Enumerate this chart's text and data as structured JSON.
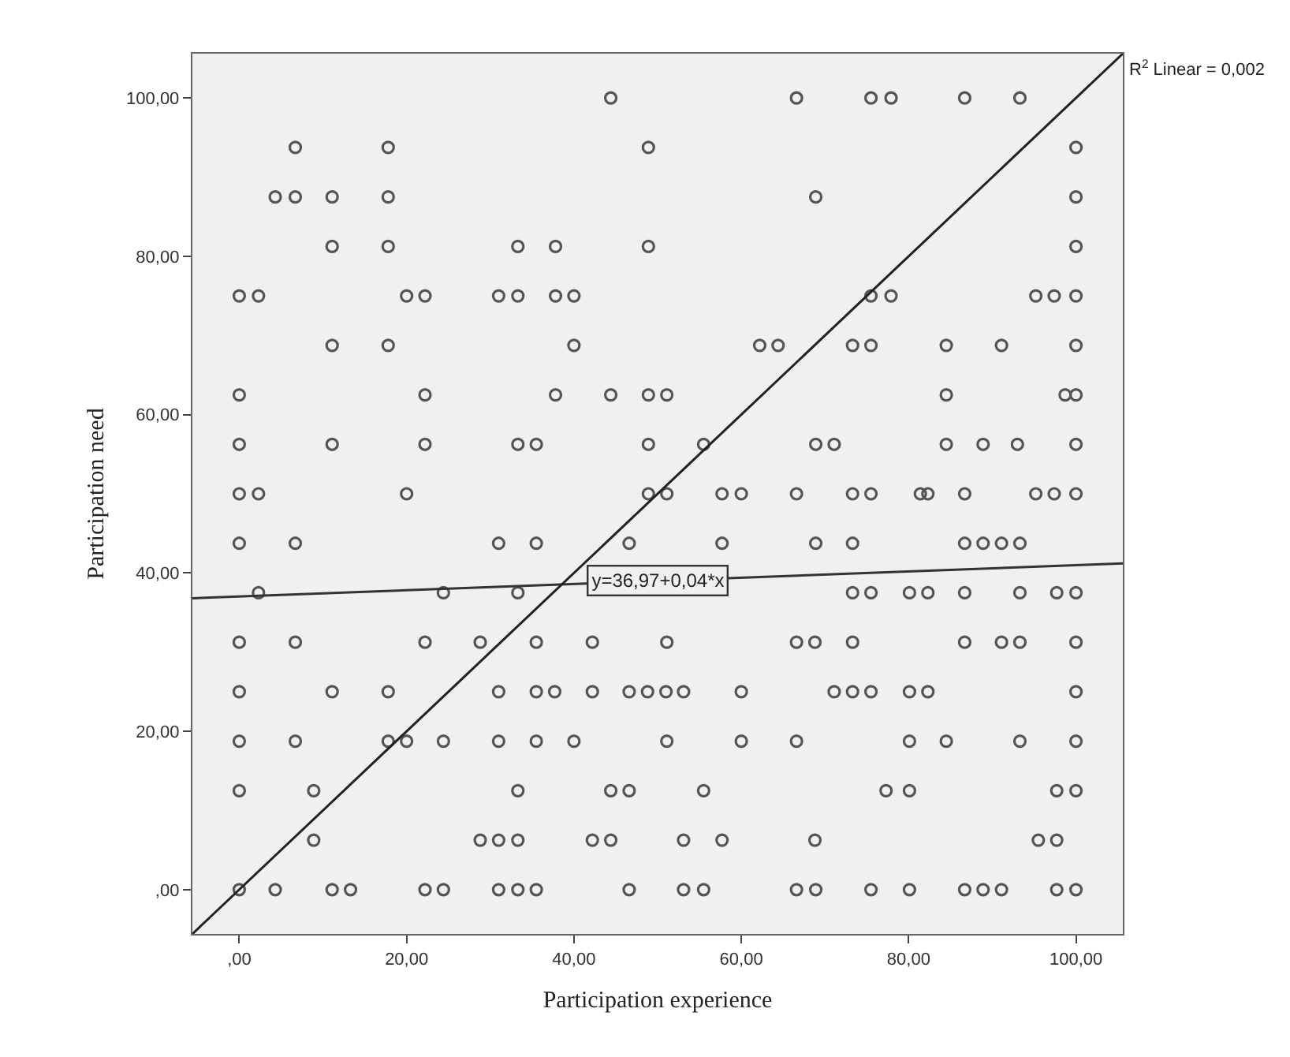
{
  "chart_data": {
    "type": "scatter",
    "xlabel": "Participation experience",
    "ylabel": "Participation need",
    "xlim": [
      -5.6,
      105.6
    ],
    "ylim": [
      -5.6,
      105.6
    ],
    "xticks": [
      {
        "value": 0,
        "label": ",00"
      },
      {
        "value": 20,
        "label": "20,00"
      },
      {
        "value": 40,
        "label": "40,00"
      },
      {
        "value": 60,
        "label": "60,00"
      },
      {
        "value": 80,
        "label": "80,00"
      },
      {
        "value": 100,
        "label": "100,00"
      }
    ],
    "yticks": [
      {
        "value": 0,
        "label": ",00"
      },
      {
        "value": 20,
        "label": "20,00"
      },
      {
        "value": 40,
        "label": "40,00"
      },
      {
        "value": 60,
        "label": "60,00"
      },
      {
        "value": 80,
        "label": "80,00"
      },
      {
        "value": 100,
        "label": "100,00"
      }
    ],
    "grid": false,
    "series": [
      {
        "marker": "circle",
        "color": "#555555",
        "x": [
          44.4,
          66.6,
          75.5,
          77.9,
          86.7,
          93.3,
          6.7,
          17.8,
          48.9,
          100,
          4.3,
          6.7,
          11.1,
          17.8,
          68.9,
          100,
          11.1,
          17.8,
          33.3,
          37.8,
          48.9,
          100,
          0,
          2.3,
          20,
          22.2,
          31,
          33.3,
          37.8,
          40,
          75.5,
          77.9,
          95.2,
          97.4,
          100,
          11.1,
          17.8,
          40,
          62.2,
          64.4,
          73.3,
          75.5,
          84.5,
          91.1,
          100,
          0,
          22.2,
          37.8,
          44.4,
          48.9,
          51.1,
          84.5,
          98.7,
          100,
          0,
          11.1,
          22.2,
          33.3,
          35.5,
          48.9,
          55.5,
          68.9,
          71.1,
          84.5,
          88.9,
          93,
          100,
          0,
          2.3,
          20,
          48.9,
          51.1,
          57.7,
          60,
          66.6,
          73.3,
          75.5,
          81.4,
          82.3,
          86.7,
          95.2,
          97.4,
          100,
          0,
          6.7,
          31,
          35.5,
          46.6,
          57.7,
          68.9,
          73.3,
          86.7,
          88.9,
          91.1,
          93.3,
          2.3,
          24.4,
          33.3,
          73.3,
          75.5,
          80.1,
          82.3,
          86.7,
          93.3,
          97.7,
          100,
          0,
          6.7,
          22.2,
          28.8,
          35.5,
          42.2,
          51.1,
          66.6,
          68.8,
          73.3,
          86.7,
          91.1,
          93.3,
          100,
          0,
          11.1,
          17.8,
          31,
          35.5,
          37.7,
          42.2,
          46.6,
          48.8,
          51,
          53.1,
          60,
          71.1,
          73.3,
          75.5,
          80.1,
          82.3,
          100,
          0,
          6.7,
          17.8,
          20,
          24.4,
          31,
          35.5,
          40,
          51.1,
          60,
          66.6,
          80.1,
          84.5,
          93.3,
          100,
          0,
          8.9,
          33.3,
          44.4,
          46.6,
          55.5,
          77.3,
          80.1,
          97.7,
          100,
          8.9,
          28.8,
          31,
          33.3,
          42.2,
          44.4,
          53.1,
          57.7,
          68.8,
          95.5,
          97.7,
          0,
          4.3,
          11.1,
          13.3,
          22.2,
          24.4,
          31,
          33.3,
          35.5,
          46.6,
          53.1,
          55.5,
          66.6,
          68.9,
          75.5,
          80.1,
          86.7,
          88.9,
          91.1,
          97.7,
          100
        ],
        "values": [
          100,
          100,
          100,
          100,
          100,
          100,
          93.75,
          93.75,
          93.75,
          93.75,
          87.5,
          87.5,
          87.5,
          87.5,
          87.5,
          87.5,
          81.25,
          81.25,
          81.25,
          81.25,
          81.25,
          81.25,
          75,
          75,
          75,
          75,
          75,
          75,
          75,
          75,
          75,
          75,
          75,
          75,
          75,
          68.75,
          68.75,
          68.75,
          68.75,
          68.75,
          68.75,
          68.75,
          68.75,
          68.75,
          68.75,
          62.5,
          62.5,
          62.5,
          62.5,
          62.5,
          62.5,
          62.5,
          62.5,
          62.5,
          56.25,
          56.25,
          56.25,
          56.25,
          56.25,
          56.25,
          56.25,
          56.25,
          56.25,
          56.25,
          56.25,
          56.25,
          56.25,
          50,
          50,
          50,
          50,
          50,
          50,
          50,
          50,
          50,
          50,
          50,
          50,
          50,
          50,
          50,
          50,
          43.75,
          43.75,
          43.75,
          43.75,
          43.75,
          43.75,
          43.75,
          43.75,
          43.75,
          43.75,
          43.75,
          43.75,
          37.5,
          37.5,
          37.5,
          37.5,
          37.5,
          37.5,
          37.5,
          37.5,
          37.5,
          37.5,
          37.5,
          31.25,
          31.25,
          31.25,
          31.25,
          31.25,
          31.25,
          31.25,
          31.25,
          31.25,
          31.25,
          31.25,
          31.25,
          31.25,
          31.25,
          25,
          25,
          25,
          25,
          25,
          25,
          25,
          25,
          25,
          25,
          25,
          25,
          25,
          25,
          25,
          25,
          25,
          25,
          18.75,
          18.75,
          18.75,
          18.75,
          18.75,
          18.75,
          18.75,
          18.75,
          18.75,
          18.75,
          18.75,
          18.75,
          18.75,
          18.75,
          18.75,
          12.5,
          12.5,
          12.5,
          12.5,
          12.5,
          12.5,
          12.5,
          12.5,
          12.5,
          12.5,
          6.25,
          6.25,
          6.25,
          6.25,
          6.25,
          6.25,
          6.25,
          6.25,
          6.25,
          6.25,
          6.25,
          0,
          0,
          0,
          0,
          0,
          0,
          0,
          0,
          0,
          0,
          0,
          0,
          0,
          0,
          0,
          0,
          0,
          0,
          0,
          0,
          0
        ]
      },
      {
        "type": "line",
        "color": "#333333",
        "x": [
          -5.6,
          105.6
        ],
        "values": [
          36.8,
          41.2
        ]
      },
      {
        "type": "line",
        "color": "#222222",
        "x": [
          -5.6,
          105.6
        ],
        "values": [
          -5.6,
          105.6
        ]
      }
    ],
    "annotations": [
      {
        "text": "y=36,97+0,04*x",
        "x": 50,
        "y": 39
      },
      "R$^{2}$ Linear = 0,002"
    ]
  }
}
